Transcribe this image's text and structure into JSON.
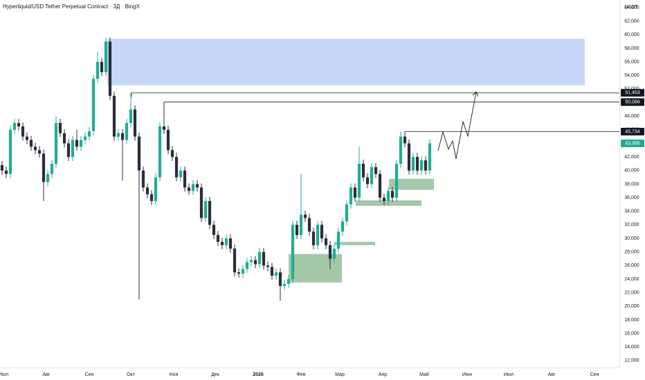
{
  "chart_data": {
    "type": "candlestick",
    "title": "Hyperliquid/USD Tether Perpetual Contract · 3Д · BingX",
    "currency": "USDT",
    "up_color": "#22ab94",
    "down_color": "#2a2e39",
    "xlim": [
      -2.5,
      445
    ],
    "ylim": [
      10972,
      65120
    ],
    "xticks": [
      {
        "value": 0,
        "label": "Июл"
      },
      {
        "value": 31,
        "label": "Авг"
      },
      {
        "value": 62,
        "label": "Сен"
      },
      {
        "value": 92,
        "label": "Окт"
      },
      {
        "value": 123,
        "label": "Ноя"
      },
      {
        "value": 153,
        "label": "Дек"
      },
      {
        "value": 184,
        "label": "2026",
        "bold": true
      },
      {
        "value": 215,
        "label": "Фев"
      },
      {
        "value": 243,
        "label": "Мар"
      },
      {
        "value": 274,
        "label": "Апр"
      },
      {
        "value": 304,
        "label": "Май"
      },
      {
        "value": 335,
        "label": "Июн"
      },
      {
        "value": 365,
        "label": "Июл"
      },
      {
        "value": 396,
        "label": "Авг"
      },
      {
        "value": 427,
        "label": "Сен"
      }
    ],
    "yticks": [
      {
        "value": 12000,
        "label": "12,000"
      },
      {
        "value": 14000,
        "label": "14,000"
      },
      {
        "value": 16000,
        "label": "16,000"
      },
      {
        "value": 18000,
        "label": "18,000"
      },
      {
        "value": 20000,
        "label": "20,000"
      },
      {
        "value": 22000,
        "label": "22,000"
      },
      {
        "value": 24000,
        "label": "24,000"
      },
      {
        "value": 26000,
        "label": "26,000"
      },
      {
        "value": 28000,
        "label": "28,000"
      },
      {
        "value": 30000,
        "label": "30,000"
      },
      {
        "value": 32000,
        "label": "32,000"
      },
      {
        "value": 34000,
        "label": "34,000"
      },
      {
        "value": 36000,
        "label": "36,000"
      },
      {
        "value": 38000,
        "label": "38,000"
      },
      {
        "value": 40000,
        "label": "40,000"
      },
      {
        "value": 42000,
        "label": "42,000"
      },
      {
        "value": 44000,
        "label": "44,000"
      },
      {
        "value": 46000,
        "label": "46,000"
      },
      {
        "value": 48000,
        "label": "48,000"
      },
      {
        "value": 50000,
        "label": "50,000"
      },
      {
        "value": 52000,
        "label": "52,000"
      },
      {
        "value": 54000,
        "label": "54,000"
      },
      {
        "value": 56000,
        "label": "56,000"
      },
      {
        "value": 58000,
        "label": "58,000"
      },
      {
        "value": 60000,
        "label": "60,000"
      },
      {
        "value": 62000,
        "label": "62,000"
      },
      {
        "value": 64000,
        "label": "64,000"
      }
    ],
    "x": [
      -1,
      2,
      5,
      8,
      11,
      14,
      17,
      20,
      23,
      26,
      29,
      32,
      35,
      38,
      41,
      44,
      47,
      50,
      53,
      56,
      59,
      62,
      65,
      68,
      71,
      74,
      77,
      80,
      83,
      86,
      89,
      92,
      95,
      98,
      101,
      104,
      107,
      110,
      113,
      116,
      119,
      122,
      125,
      128,
      131,
      134,
      137,
      140,
      143,
      146,
      149,
      152,
      155,
      158,
      161,
      164,
      167,
      170,
      173,
      176,
      179,
      182,
      185,
      188,
      191,
      194,
      197,
      200,
      203,
      206,
      209,
      212,
      215,
      218,
      221,
      224,
      227,
      230,
      233,
      236,
      239,
      242,
      245,
      248,
      251,
      254,
      257,
      260,
      263,
      266,
      269,
      272,
      275,
      278,
      281,
      284,
      287,
      290,
      293,
      296,
      299,
      302,
      305,
      308
    ],
    "open": [
      40800,
      40000,
      39500,
      46000,
      47000,
      46500,
      45000,
      44500,
      43500,
      43000,
      42500,
      38300,
      39500,
      41000,
      47000,
      45500,
      44000,
      42000,
      44500,
      43500,
      44500,
      45000,
      45800,
      53500,
      56000,
      54500,
      59000,
      51000,
      45000,
      45500,
      44500,
      47000,
      49000,
      45000,
      40000,
      37500,
      36500,
      35500,
      39000,
      46500,
      46000,
      43000,
      42000,
      39000,
      40000,
      37500,
      37000,
      38000,
      37500,
      33000,
      35500,
      32000,
      30500,
      29500,
      29000,
      30000,
      28500,
      25000,
      24800,
      25500,
      26500,
      26800,
      26200,
      28000,
      26000,
      25800,
      24500,
      25000,
      23000,
      23300,
      24000,
      32000,
      30500,
      33500,
      33000,
      31000,
      29000,
      32000,
      30000,
      29000,
      27000,
      28500,
      31000,
      32500,
      35000,
      37500,
      36000,
      41000,
      39000,
      38000,
      40500,
      39500,
      36000,
      35500,
      37000,
      36000,
      41000,
      45000,
      44000,
      40000,
      42000,
      40000,
      41500,
      40000
    ],
    "high": [
      41400,
      40600,
      46600,
      47600,
      47600,
      47100,
      45600,
      45100,
      44100,
      43600,
      43100,
      40100,
      41600,
      48000,
      47600,
      46100,
      44600,
      45100,
      46000,
      45100,
      45600,
      46400,
      54100,
      57500,
      56600,
      59500,
      59600,
      51600,
      46100,
      46100,
      47600,
      51453,
      49600,
      45600,
      40600,
      38100,
      37100,
      39600,
      47100,
      50086,
      46600,
      43600,
      42600,
      40600,
      40600,
      38100,
      38600,
      38600,
      38100,
      36100,
      36100,
      32600,
      31100,
      30100,
      30600,
      30600,
      29100,
      25600,
      26100,
      27100,
      27400,
      27400,
      28600,
      28600,
      26600,
      26400,
      25600,
      25600,
      23900,
      24600,
      32600,
      32600,
      39500,
      34100,
      33600,
      31600,
      32600,
      32600,
      30600,
      29600,
      29100,
      31600,
      33100,
      35600,
      38100,
      38100,
      43500,
      41600,
      39600,
      41100,
      41100,
      40100,
      36600,
      37600,
      37600,
      41600,
      45734,
      45600,
      44600,
      42600,
      42600,
      42100,
      42100,
      44600
    ],
    "low": [
      39400,
      38900,
      38900,
      45400,
      45900,
      44400,
      43900,
      42900,
      42400,
      41900,
      35500,
      37700,
      38900,
      40400,
      44900,
      43400,
      41400,
      41400,
      42900,
      42900,
      43900,
      44400,
      45200,
      52900,
      53900,
      53900,
      50400,
      44400,
      44400,
      38500,
      43900,
      46400,
      44400,
      21000,
      36900,
      35900,
      34900,
      34900,
      38400,
      45400,
      42400,
      41400,
      38400,
      38400,
      36900,
      36400,
      36400,
      36900,
      32400,
      32400,
      31400,
      29900,
      28900,
      28400,
      28400,
      27900,
      24400,
      24200,
      24200,
      24900,
      25900,
      25600,
      25600,
      25400,
      25200,
      23900,
      23900,
      20800,
      22400,
      22700,
      23400,
      29900,
      29900,
      32400,
      30400,
      28400,
      28400,
      29400,
      28400,
      25500,
      26400,
      27900,
      30400,
      31900,
      34400,
      35400,
      35400,
      38400,
      37400,
      37400,
      38900,
      35400,
      34900,
      34900,
      35400,
      35400,
      40400,
      43400,
      39400,
      39400,
      39400,
      39400,
      39400,
      39400
    ],
    "close": [
      40000,
      39500,
      46000,
      47000,
      46500,
      45000,
      44500,
      43500,
      43000,
      42500,
      38300,
      39500,
      41000,
      47000,
      45500,
      44000,
      42000,
      44500,
      43500,
      44500,
      45000,
      45800,
      53500,
      56000,
      54500,
      59000,
      51000,
      45000,
      45500,
      44500,
      47000,
      49000,
      45000,
      40000,
      37500,
      36500,
      35500,
      39000,
      46500,
      46000,
      43000,
      42000,
      39000,
      40000,
      37500,
      37000,
      38000,
      37500,
      33000,
      35500,
      32000,
      30500,
      29500,
      29000,
      30000,
      28500,
      25000,
      24800,
      25500,
      26500,
      26800,
      26200,
      28000,
      26000,
      25800,
      24500,
      25000,
      23000,
      23300,
      24000,
      32000,
      30500,
      33500,
      33000,
      31000,
      29000,
      32000,
      30000,
      29000,
      27000,
      28500,
      31000,
      32500,
      35000,
      37500,
      36000,
      41000,
      39000,
      38000,
      40500,
      39500,
      36000,
      35500,
      37000,
      36000,
      41000,
      45000,
      44000,
      40000,
      42000,
      40000,
      41500,
      40000,
      43996
    ],
    "zones": [
      {
        "x": [
          75,
          420
        ],
        "y": [
          52560,
          59390
        ],
        "color": "#c6d7fb"
      },
      {
        "x": [
          206,
          244.5
        ],
        "y": [
          23500,
          27700
        ],
        "color": "#a5c8a8"
      },
      {
        "x": [
          239,
          268.5
        ],
        "y": [
          29000,
          29500
        ],
        "color": "#a5c8a8"
      },
      {
        "x": [
          254.5,
          302
        ],
        "y": [
          34800,
          35600
        ],
        "color": "#a5c8a8"
      },
      {
        "x": [
          278.5,
          311
        ],
        "y": [
          37150,
          38780
        ],
        "color": "#a5c8a8"
      }
    ],
    "levels": [
      {
        "value": 51453,
        "label": "51,453",
        "x": 92.5
      },
      {
        "value": 50086,
        "label": "50,086",
        "x": 116
      },
      {
        "value": 45734,
        "label": "45,734",
        "x": 290
      }
    ],
    "last_price": {
      "value": 43996,
      "label": "43,996"
    },
    "projection": {
      "x": [
        314,
        317.5,
        321.5,
        324.5,
        327,
        332,
        335.5,
        341.5
      ],
      "y": [
        42930,
        45680,
        43130,
        44350,
        41710,
        47200,
        45070,
        51580
      ]
    }
  }
}
